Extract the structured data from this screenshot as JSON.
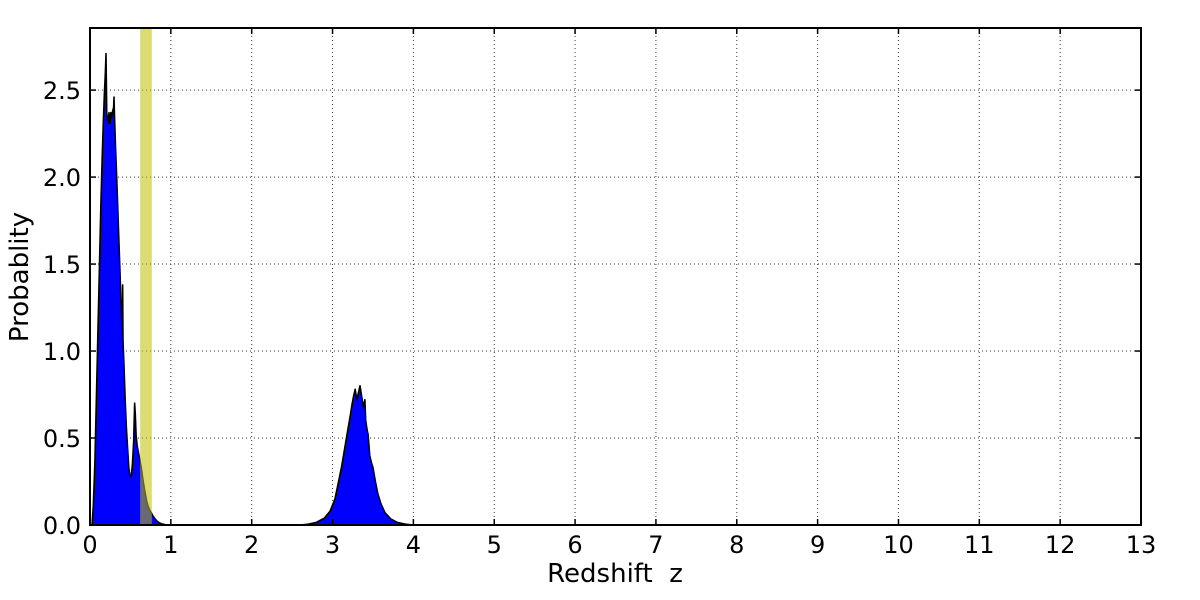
{
  "figure": {
    "xlabel": "Redshift  z",
    "ylabel": "Probablity",
    "background": "#ffffff"
  },
  "chart_data": {
    "type": "area",
    "title": "",
    "xlabel": "Redshift  z",
    "ylabel": "Probablity",
    "xlim": [
      0,
      13
    ],
    "ylim": [
      0,
      2.857
    ],
    "x_ticks": [
      0,
      1,
      2,
      3,
      4,
      5,
      6,
      7,
      8,
      9,
      10,
      11,
      12,
      13
    ],
    "x_tick_labels": [
      "0",
      "1",
      "2",
      "3",
      "4",
      "5",
      "6",
      "7",
      "8",
      "9",
      "10",
      "11",
      "12",
      "13"
    ],
    "y_ticks": [
      0,
      0.5,
      1.0,
      1.5,
      2.0,
      2.5
    ],
    "y_tick_labels": [
      "0.0",
      "0.5",
      "1.0",
      "1.5",
      "2.0",
      "2.5"
    ],
    "grid": {
      "visible": true,
      "style": "dotted",
      "color": "#222222"
    },
    "legend": "none",
    "frame_color": "#000000",
    "highlight_band": {
      "name": "reference-redshift-band",
      "x_start": 0.62,
      "x_end": 0.765,
      "color": "#bfbf00",
      "alpha": 0.55
    },
    "series": [
      {
        "name": "pdf-low-z-peak",
        "fill_color": "#0000ff",
        "edge_color": "#000000",
        "points": [
          [
            0.025,
            0.0
          ],
          [
            0.04,
            0.1
          ],
          [
            0.06,
            0.35
          ],
          [
            0.08,
            0.75
          ],
          [
            0.1,
            1.15
          ],
          [
            0.12,
            1.55
          ],
          [
            0.135,
            1.85
          ],
          [
            0.15,
            2.1
          ],
          [
            0.165,
            2.32
          ],
          [
            0.178,
            2.48
          ],
          [
            0.19,
            2.6
          ],
          [
            0.198,
            2.71
          ],
          [
            0.207,
            2.37
          ],
          [
            0.215,
            2.33
          ],
          [
            0.225,
            2.31
          ],
          [
            0.235,
            2.37
          ],
          [
            0.247,
            2.31
          ],
          [
            0.258,
            2.37
          ],
          [
            0.266,
            2.34
          ],
          [
            0.28,
            2.38
          ],
          [
            0.292,
            2.4
          ],
          [
            0.297,
            2.46
          ],
          [
            0.303,
            2.35
          ],
          [
            0.315,
            2.18
          ],
          [
            0.33,
            2.0
          ],
          [
            0.345,
            1.8
          ],
          [
            0.36,
            1.6
          ],
          [
            0.375,
            1.4
          ],
          [
            0.39,
            1.18
          ],
          [
            0.4,
            1.1
          ],
          [
            0.404,
            1.38
          ],
          [
            0.408,
            1.06
          ],
          [
            0.42,
            0.92
          ],
          [
            0.435,
            0.72
          ],
          [
            0.45,
            0.56
          ],
          [
            0.465,
            0.44
          ],
          [
            0.48,
            0.33
          ],
          [
            0.495,
            0.28
          ],
          [
            0.51,
            0.28
          ],
          [
            0.525,
            0.35
          ],
          [
            0.54,
            0.48
          ],
          [
            0.552,
            0.7
          ],
          [
            0.56,
            0.64
          ],
          [
            0.57,
            0.52
          ],
          [
            0.582,
            0.46
          ],
          [
            0.594,
            0.43
          ],
          [
            0.614,
            0.38
          ],
          [
            0.634,
            0.33
          ],
          [
            0.655,
            0.26
          ],
          [
            0.676,
            0.2
          ],
          [
            0.7,
            0.14
          ],
          [
            0.717,
            0.11
          ],
          [
            0.74,
            0.085
          ],
          [
            0.758,
            0.07
          ],
          [
            0.775,
            0.055
          ],
          [
            0.79,
            0.045
          ],
          [
            0.81,
            0.032
          ],
          [
            0.835,
            0.02
          ],
          [
            0.86,
            0.012
          ],
          [
            0.89,
            0.006
          ],
          [
            0.93,
            0.002
          ],
          [
            0.98,
            0.0
          ]
        ]
      },
      {
        "name": "pdf-high-z-peak",
        "fill_color": "#0000ff",
        "edge_color": "#000000",
        "points": [
          [
            2.6,
            0.0
          ],
          [
            2.7,
            0.005
          ],
          [
            2.8,
            0.015
          ],
          [
            2.9,
            0.04
          ],
          [
            2.97,
            0.08
          ],
          [
            3.03,
            0.15
          ],
          [
            3.07,
            0.24
          ],
          [
            3.11,
            0.33
          ],
          [
            3.15,
            0.44
          ],
          [
            3.19,
            0.55
          ],
          [
            3.22,
            0.63
          ],
          [
            3.24,
            0.69
          ],
          [
            3.26,
            0.74
          ],
          [
            3.28,
            0.78
          ],
          [
            3.3,
            0.72
          ],
          [
            3.32,
            0.76
          ],
          [
            3.34,
            0.8
          ],
          [
            3.36,
            0.74
          ],
          [
            3.38,
            0.68
          ],
          [
            3.4,
            0.72
          ],
          [
            3.41,
            0.6
          ],
          [
            3.43,
            0.54
          ],
          [
            3.44,
            0.52
          ],
          [
            3.46,
            0.4
          ],
          [
            3.48,
            0.36
          ],
          [
            3.5,
            0.33
          ],
          [
            3.53,
            0.25
          ],
          [
            3.56,
            0.18
          ],
          [
            3.6,
            0.12
          ],
          [
            3.65,
            0.07
          ],
          [
            3.72,
            0.035
          ],
          [
            3.8,
            0.015
          ],
          [
            3.9,
            0.005
          ],
          [
            4.0,
            0.0
          ]
        ]
      }
    ]
  }
}
